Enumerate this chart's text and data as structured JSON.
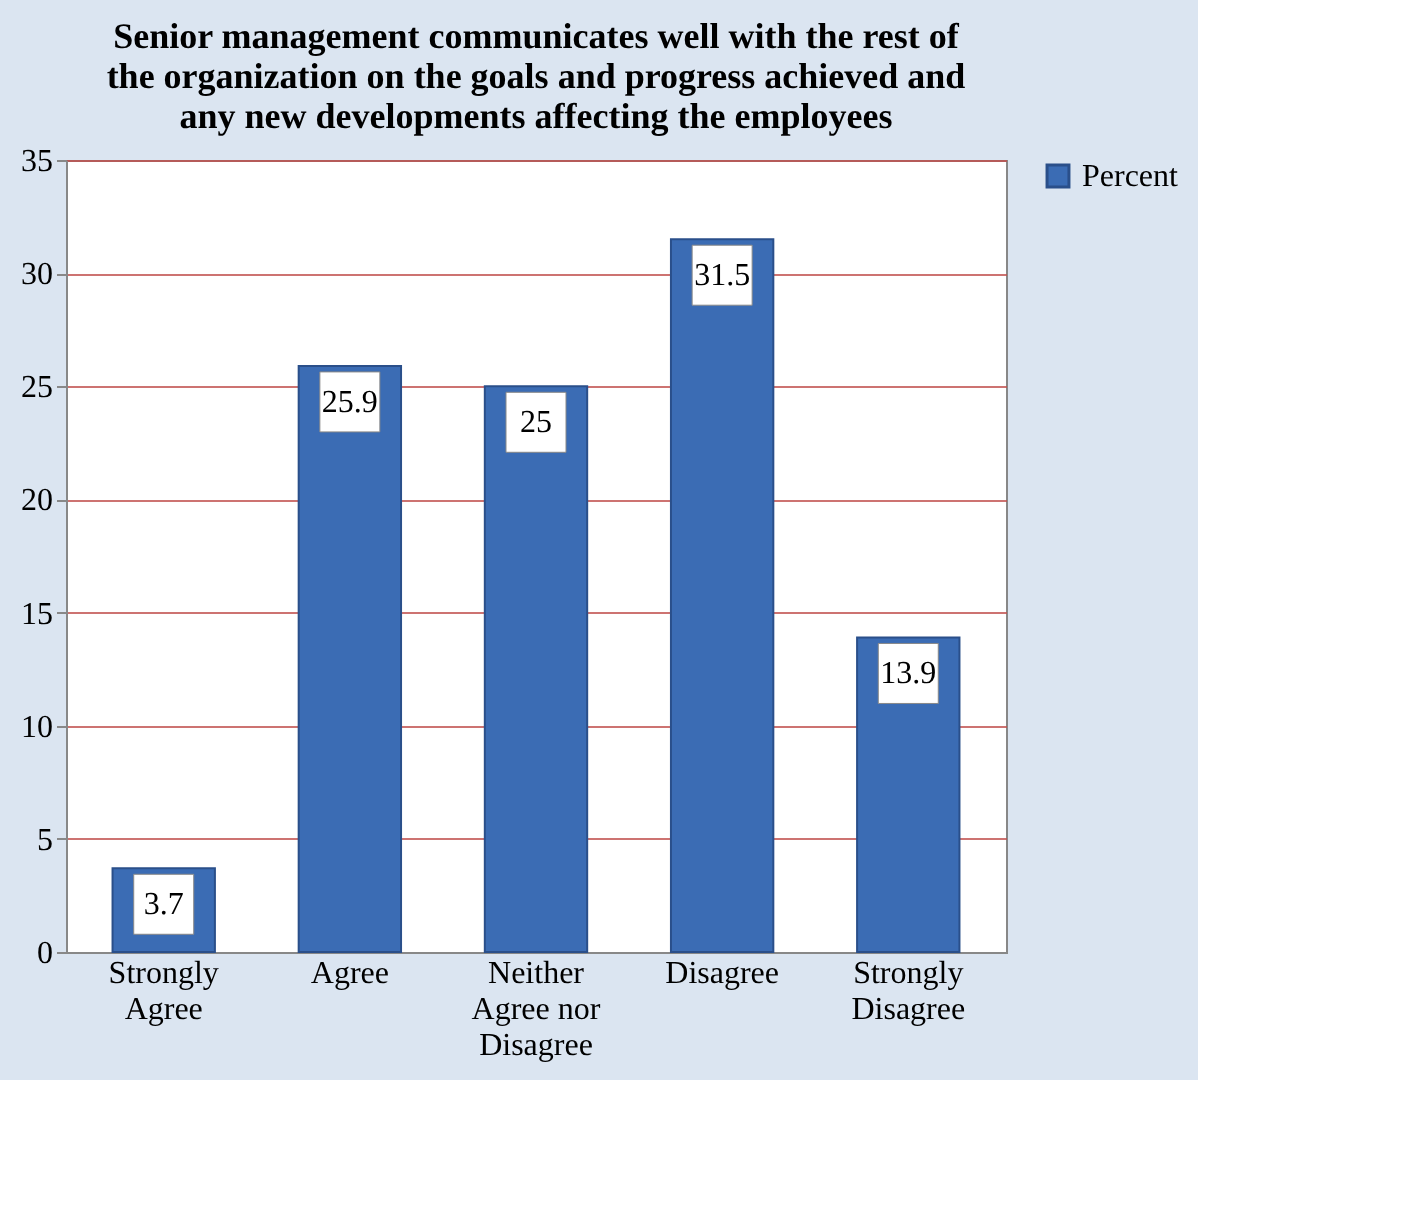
{
  "chart_data": {
    "type": "bar",
    "title": "Senior management communicates well with the rest of the organization on the goals and progress achieved and any new developments affecting the employees",
    "categories": [
      "Strongly Agree",
      "Agree",
      "Neither Agree nor Disagree",
      "Disagree",
      "Strongly Disagree"
    ],
    "series": [
      {
        "name": "Percent",
        "color": "#3b6cb4",
        "values": [
          3.7,
          25.9,
          25,
          31.5,
          13.9
        ]
      }
    ],
    "ylim": [
      0,
      35
    ],
    "yticks": [
      0,
      5,
      10,
      15,
      20,
      25,
      30,
      35
    ],
    "grid": "y",
    "legend": "right",
    "data_labels": true
  }
}
